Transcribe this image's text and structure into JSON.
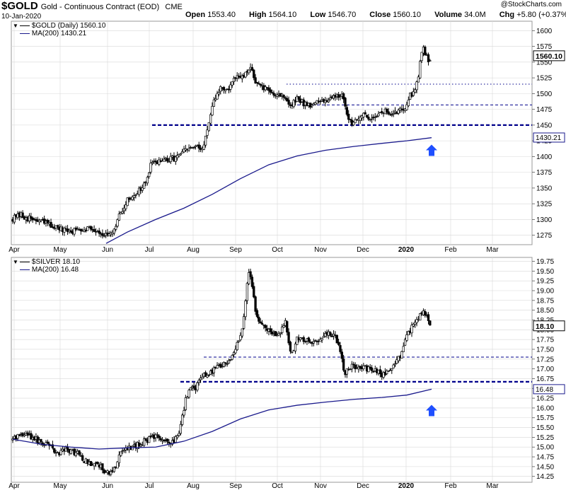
{
  "header": {
    "symbol": "$GOLD",
    "description": "Gold - Continuous Contract (EOD)",
    "exchange": "CME",
    "date": "10-Jan-2020",
    "open_label": "Open",
    "open": "1553.40",
    "high_label": "High",
    "high": "1564.10",
    "low_label": "Low",
    "low": "1546.70",
    "close_label": "Close",
    "close": "1560.10",
    "volume_label": "Volume",
    "volume": "34.0M",
    "chg_label": "Chg",
    "chg": "+5.80 (+0.37%)",
    "brand": "@StockCharts.com"
  },
  "colors": {
    "price": "#000000",
    "ma": "#1a1a8c",
    "level": "#00008b",
    "arrow": "#1f4fff",
    "grid": "#d8d8d8"
  },
  "chart_data": [
    {
      "type": "candlestick",
      "legend": [
        {
          "name": "$GOLD (Daily) 1560.10"
        },
        {
          "name": "MA(200) 1430.21"
        }
      ],
      "ylim": [
        1260,
        1615
      ],
      "y_ticks": [
        "1275",
        "1300",
        "1325",
        "1350",
        "1375",
        "1400",
        "1425",
        "1450",
        "1475",
        "1500",
        "1525",
        "1550",
        "1575",
        "1600"
      ],
      "x_ticks": [
        "Apr",
        "May",
        "Jun",
        "Jul",
        "Aug",
        "Sep",
        "Oct",
        "Nov",
        "Dec",
        "2020",
        "Feb",
        "Mar"
      ],
      "x_tick_days": [
        20,
        85,
        152,
        211,
        273,
        333,
        392,
        453,
        513,
        574,
        637,
        696
      ],
      "last_price_label": "1560.10",
      "ma_label": "1430.21",
      "anchors": [
        [
          18,
          1302
        ],
        [
          30,
          1306
        ],
        [
          45,
          1300
        ],
        [
          60,
          1296
        ],
        [
          75,
          1290
        ],
        [
          88,
          1282
        ],
        [
          100,
          1281
        ],
        [
          115,
          1286
        ],
        [
          128,
          1287
        ],
        [
          142,
          1280
        ],
        [
          152,
          1273
        ],
        [
          160,
          1276
        ],
        [
          168,
          1305
        ],
        [
          180,
          1330
        ],
        [
          195,
          1345
        ],
        [
          205,
          1355
        ],
        [
          213,
          1385
        ],
        [
          222,
          1393
        ],
        [
          233,
          1393
        ],
        [
          248,
          1398
        ],
        [
          263,
          1410
        ],
        [
          275,
          1415
        ],
        [
          285,
          1410
        ],
        [
          295,
          1450
        ],
        [
          303,
          1490
        ],
        [
          312,
          1510
        ],
        [
          322,
          1505
        ],
        [
          333,
          1525
        ],
        [
          343,
          1525
        ],
        [
          355,
          1540
        ],
        [
          363,
          1515
        ],
        [
          373,
          1508
        ],
        [
          383,
          1502
        ],
        [
          392,
          1500
        ],
        [
          403,
          1495
        ],
        [
          411,
          1478
        ],
        [
          420,
          1493
        ],
        [
          430,
          1484
        ],
        [
          443,
          1483
        ],
        [
          455,
          1488
        ],
        [
          470,
          1495
        ],
        [
          483,
          1500
        ],
        [
          490,
          1465
        ],
        [
          497,
          1455
        ],
        [
          510,
          1465
        ],
        [
          523,
          1462
        ],
        [
          535,
          1468
        ],
        [
          545,
          1472
        ],
        [
          555,
          1465
        ],
        [
          565,
          1475
        ],
        [
          573,
          1480
        ],
        [
          578,
          1494
        ],
        [
          585,
          1505
        ],
        [
          590,
          1520
        ],
        [
          597,
          1575
        ],
        [
          601,
          1565
        ],
        [
          605,
          1550
        ],
        [
          610,
          1560
        ]
      ],
      "moving_average": [
        [
          150,
          1262
        ],
        [
          180,
          1280
        ],
        [
          220,
          1300
        ],
        [
          260,
          1318
        ],
        [
          300,
          1340
        ],
        [
          340,
          1365
        ],
        [
          380,
          1387
        ],
        [
          420,
          1401
        ],
        [
          460,
          1410
        ],
        [
          500,
          1416
        ],
        [
          540,
          1421
        ],
        [
          575,
          1425
        ],
        [
          610,
          1430
        ]
      ],
      "levels": [
        {
          "value": 1515,
          "style": "dotted"
        },
        {
          "value": 1482,
          "style": "dashed"
        },
        {
          "value": 1450,
          "style": "heavy"
        }
      ],
      "arrow": {
        "x": 610,
        "y": 1419
      }
    },
    {
      "type": "candlestick",
      "legend": [
        {
          "name": "$SILVER 18.10"
        },
        {
          "name": "MA(200) 16.48"
        }
      ],
      "ylim": [
        14.1,
        19.85
      ],
      "y_ticks": [
        "14.25",
        "14.50",
        "14.75",
        "15.00",
        "15.25",
        "15.50",
        "15.75",
        "16.00",
        "16.25",
        "16.50",
        "16.75",
        "17.00",
        "17.25",
        "17.50",
        "17.75",
        "18.00",
        "18.25",
        "18.50",
        "18.75",
        "19.00",
        "19.25",
        "19.50",
        "19.75"
      ],
      "x_ticks": [
        "Apr",
        "May",
        "Jun",
        "Jul",
        "Aug",
        "Sep",
        "Oct",
        "Nov",
        "Dec",
        "2020",
        "Feb",
        "Mar"
      ],
      "x_tick_days": [
        20,
        85,
        152,
        211,
        273,
        333,
        392,
        453,
        513,
        574,
        637,
        696
      ],
      "last_price_label": "18.10",
      "ma_label": "16.48",
      "anchors": [
        [
          18,
          15.2
        ],
        [
          30,
          15.35
        ],
        [
          42,
          15.3
        ],
        [
          55,
          15.15
        ],
        [
          65,
          15.05
        ],
        [
          75,
          14.95
        ],
        [
          85,
          14.85
        ],
        [
          95,
          14.95
        ],
        [
          108,
          14.85
        ],
        [
          120,
          14.65
        ],
        [
          130,
          14.55
        ],
        [
          140,
          14.55
        ],
        [
          150,
          14.35
        ],
        [
          160,
          14.4
        ],
        [
          170,
          14.8
        ],
        [
          180,
          14.95
        ],
        [
          190,
          15.0
        ],
        [
          200,
          15.1
        ],
        [
          210,
          15.2
        ],
        [
          220,
          15.3
        ],
        [
          232,
          15.15
        ],
        [
          245,
          15.1
        ],
        [
          255,
          15.5
        ],
        [
          263,
          16.3
        ],
        [
          270,
          16.45
        ],
        [
          278,
          16.55
        ],
        [
          288,
          16.85
        ],
        [
          298,
          16.9
        ],
        [
          310,
          17.1
        ],
        [
          322,
          17.15
        ],
        [
          333,
          17.45
        ],
        [
          343,
          18.1
        ],
        [
          351,
          19.45
        ],
        [
          356,
          19.2
        ],
        [
          362,
          18.3
        ],
        [
          370,
          18.1
        ],
        [
          380,
          18.0
        ],
        [
          393,
          17.85
        ],
        [
          403,
          18.2
        ],
        [
          411,
          17.35
        ],
        [
          420,
          17.75
        ],
        [
          432,
          17.7
        ],
        [
          445,
          17.65
        ],
        [
          458,
          17.85
        ],
        [
          470,
          17.9
        ],
        [
          480,
          17.6
        ],
        [
          487,
          16.9
        ],
        [
          497,
          17.05
        ],
        [
          510,
          17.05
        ],
        [
          522,
          17.0
        ],
        [
          535,
          16.9
        ],
        [
          545,
          16.85
        ],
        [
          555,
          17.1
        ],
        [
          565,
          17.3
        ],
        [
          575,
          17.8
        ],
        [
          582,
          18.05
        ],
        [
          590,
          18.25
        ],
        [
          598,
          18.45
        ],
        [
          603,
          18.3
        ],
        [
          610,
          18.1
        ]
      ],
      "moving_average": [
        [
          18,
          15.2
        ],
        [
          60,
          15.07
        ],
        [
          100,
          15.0
        ],
        [
          140,
          14.95
        ],
        [
          180,
          14.98
        ],
        [
          220,
          15.0
        ],
        [
          260,
          15.15
        ],
        [
          300,
          15.4
        ],
        [
          340,
          15.72
        ],
        [
          380,
          15.95
        ],
        [
          420,
          16.07
        ],
        [
          460,
          16.15
        ],
        [
          500,
          16.22
        ],
        [
          540,
          16.27
        ],
        [
          575,
          16.33
        ],
        [
          610,
          16.48
        ]
      ],
      "levels": [
        {
          "value": 17.3,
          "style": "dashed"
        },
        {
          "value": 16.67,
          "style": "heavy"
        }
      ],
      "arrow": {
        "x": 610,
        "y": 16.08
      }
    }
  ]
}
